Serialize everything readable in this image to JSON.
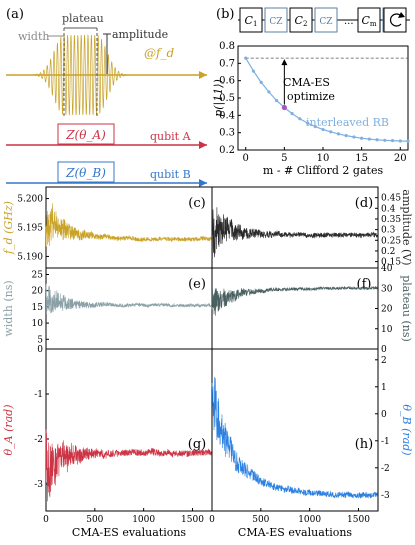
{
  "panel_a": {
    "label": "(a)",
    "plateau": "plateau",
    "width": "width",
    "amplitude": "amplitude",
    "fd": "@f_d",
    "gateA": "Z(θ_A)",
    "gateB": "Z(θ_B)",
    "qubitA": "qubit A",
    "qubitB": "qubit B",
    "colors": {
      "pulse": "#c9a227",
      "qubitA": "#cc3344",
      "qubitB": "#3377cc"
    }
  },
  "panel_b": {
    "label": "(b)",
    "seq": [
      "C1",
      "CZ",
      "C2",
      "CZ",
      "...",
      "Cm",
      "CZ"
    ],
    "loop_icon": "loop-arrow-icon",
    "annotation_line1": "CMA-ES",
    "annotation_line2": "optimize",
    "curve_label": "interleaved RB"
  },
  "chart_data": [
    {
      "id": "b",
      "type": "line",
      "xlabel": "m - # Clifford 2 gates",
      "ylabel": "p(|11⟩)",
      "xlim": [
        -1,
        21
      ],
      "ylim": [
        0.2,
        0.8
      ],
      "xticks": [
        0,
        5,
        10,
        15,
        20
      ],
      "yticks": [
        0.2,
        0.3,
        0.4,
        0.5,
        0.6,
        0.7,
        0.8
      ],
      "series": [
        {
          "name": "interleaved RB",
          "color": "#7fb0df",
          "x": [
            0,
            1,
            2,
            3,
            4,
            5,
            6,
            7,
            8,
            9,
            10,
            11,
            12,
            13,
            14,
            15,
            16,
            17,
            18,
            19,
            20,
            21
          ],
          "y": [
            0.73,
            0.655,
            0.59,
            0.535,
            0.485,
            0.445,
            0.41,
            0.38,
            0.355,
            0.335,
            0.318,
            0.305,
            0.293,
            0.283,
            0.275,
            0.268,
            0.263,
            0.259,
            0.256,
            0.254,
            0.252,
            0.251
          ]
        }
      ],
      "reference": {
        "y": 0.73
      },
      "highlight": {
        "x": 5,
        "y": 0.445,
        "color": "#a259c8"
      }
    },
    {
      "id": "c",
      "label": "(c)",
      "type": "line",
      "ylabel": "f_d (GHz)",
      "xlim": [
        0,
        1700
      ],
      "ylim": [
        5.188,
        5.202
      ],
      "yticks": [
        5.19,
        5.195,
        5.2
      ],
      "ytick_labels": [
        "5.190",
        "5.195",
        "5.200"
      ],
      "start": 5.196,
      "end": 5.193,
      "amp0": 0.0045,
      "seed": 11,
      "color": "#c9a227"
    },
    {
      "id": "d",
      "label": "(d)",
      "type": "line",
      "ylabel": "amplitude (V)",
      "xlim": [
        0,
        1700
      ],
      "ylim": [
        0.12,
        0.5
      ],
      "yticks": [
        0.15,
        0.2,
        0.25,
        0.3,
        0.35,
        0.4,
        0.45
      ],
      "ytick_labels": [
        "0.15",
        "0.2",
        "0.25",
        "0.3",
        "0.35",
        "0.4",
        "0.45"
      ],
      "start": 0.3,
      "end": 0.275,
      "amp0": 0.14,
      "seed": 23,
      "color": "#2a2a2a"
    },
    {
      "id": "e",
      "label": "(e)",
      "type": "line",
      "ylabel": "width (ns)",
      "xlim": [
        0,
        1700
      ],
      "ylim": [
        2,
        27
      ],
      "yticks": [
        5,
        10,
        15,
        20,
        25
      ],
      "ytick_labels": [
        "5",
        "10",
        "15",
        "20",
        "25"
      ],
      "start": 17,
      "end": 15.5,
      "amp0": 6,
      "seed": 37,
      "color": "#8aa0a6"
    },
    {
      "id": "f",
      "label": "(f)",
      "type": "line",
      "ylabel": "plateau (ns)",
      "xlim": [
        0,
        1700
      ],
      "ylim": [
        0,
        40
      ],
      "yticks": [
        0,
        10,
        20,
        30,
        40
      ],
      "ytick_labels": [
        "0",
        "10",
        "20",
        "30",
        "40"
      ],
      "start": 22,
      "end": 30,
      "amp0": 9,
      "seed": 41,
      "color": "#4a6060"
    },
    {
      "id": "g",
      "label": "(g)",
      "type": "line",
      "ylabel": "θ_A (rad)",
      "xlim": [
        0,
        1700
      ],
      "ylim": [
        -3.6,
        0
      ],
      "yticks": [
        -3,
        -2,
        -1,
        0
      ],
      "ytick_labels": [
        "-3",
        "-2",
        "-1",
        "0"
      ],
      "start": -2.5,
      "end": -2.3,
      "amp0": 0.9,
      "seed": 53,
      "color": "#cc3344",
      "xlabel": "CMA-ES evaluations",
      "xticks": [
        0,
        500,
        1000,
        1500
      ]
    },
    {
      "id": "h",
      "label": "(h)",
      "type": "line",
      "ylabel": "θ_B (rad)",
      "xlim": [
        0,
        1700
      ],
      "ylim": [
        -3.6,
        2.4
      ],
      "yticks": [
        -3,
        -2,
        -1,
        0,
        1,
        2
      ],
      "ytick_labels": [
        "-3",
        "-2",
        "-1",
        "0",
        "1",
        "2"
      ],
      "start": 0.5,
      "end": -3.0,
      "amp0": 1.3,
      "seed": 67,
      "color": "#2a7fe0",
      "xlabel": "CMA-ES evaluations",
      "xticks": [
        0,
        500,
        1000,
        1500
      ]
    }
  ]
}
